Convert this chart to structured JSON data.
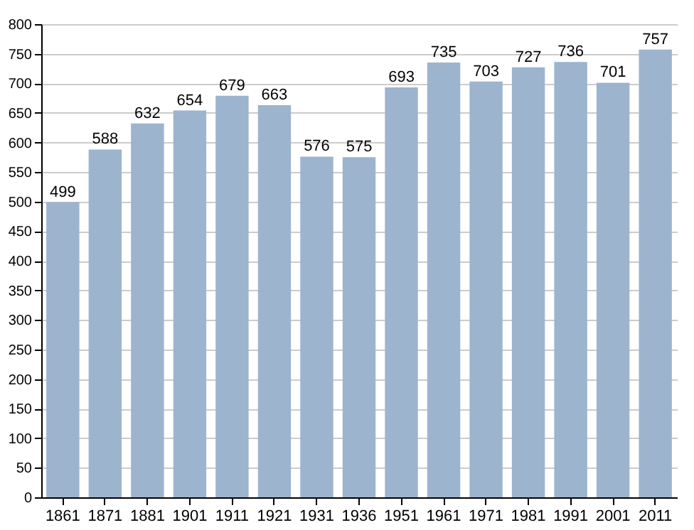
{
  "chart_data": {
    "type": "bar",
    "categories": [
      "1861",
      "1871",
      "1881",
      "1901",
      "1911",
      "1921",
      "1931",
      "1936",
      "1951",
      "1961",
      "1971",
      "1981",
      "1991",
      "2001",
      "2011"
    ],
    "values": [
      499,
      588,
      632,
      654,
      679,
      663,
      576,
      575,
      693,
      735,
      703,
      727,
      736,
      701,
      757
    ],
    "color": "#9db4cf",
    "ylim": [
      0,
      800
    ],
    "yticks": [
      0,
      50,
      100,
      150,
      200,
      250,
      300,
      350,
      400,
      450,
      500,
      550,
      600,
      650,
      700,
      750,
      800
    ],
    "grid": "y",
    "data_labels": true
  }
}
